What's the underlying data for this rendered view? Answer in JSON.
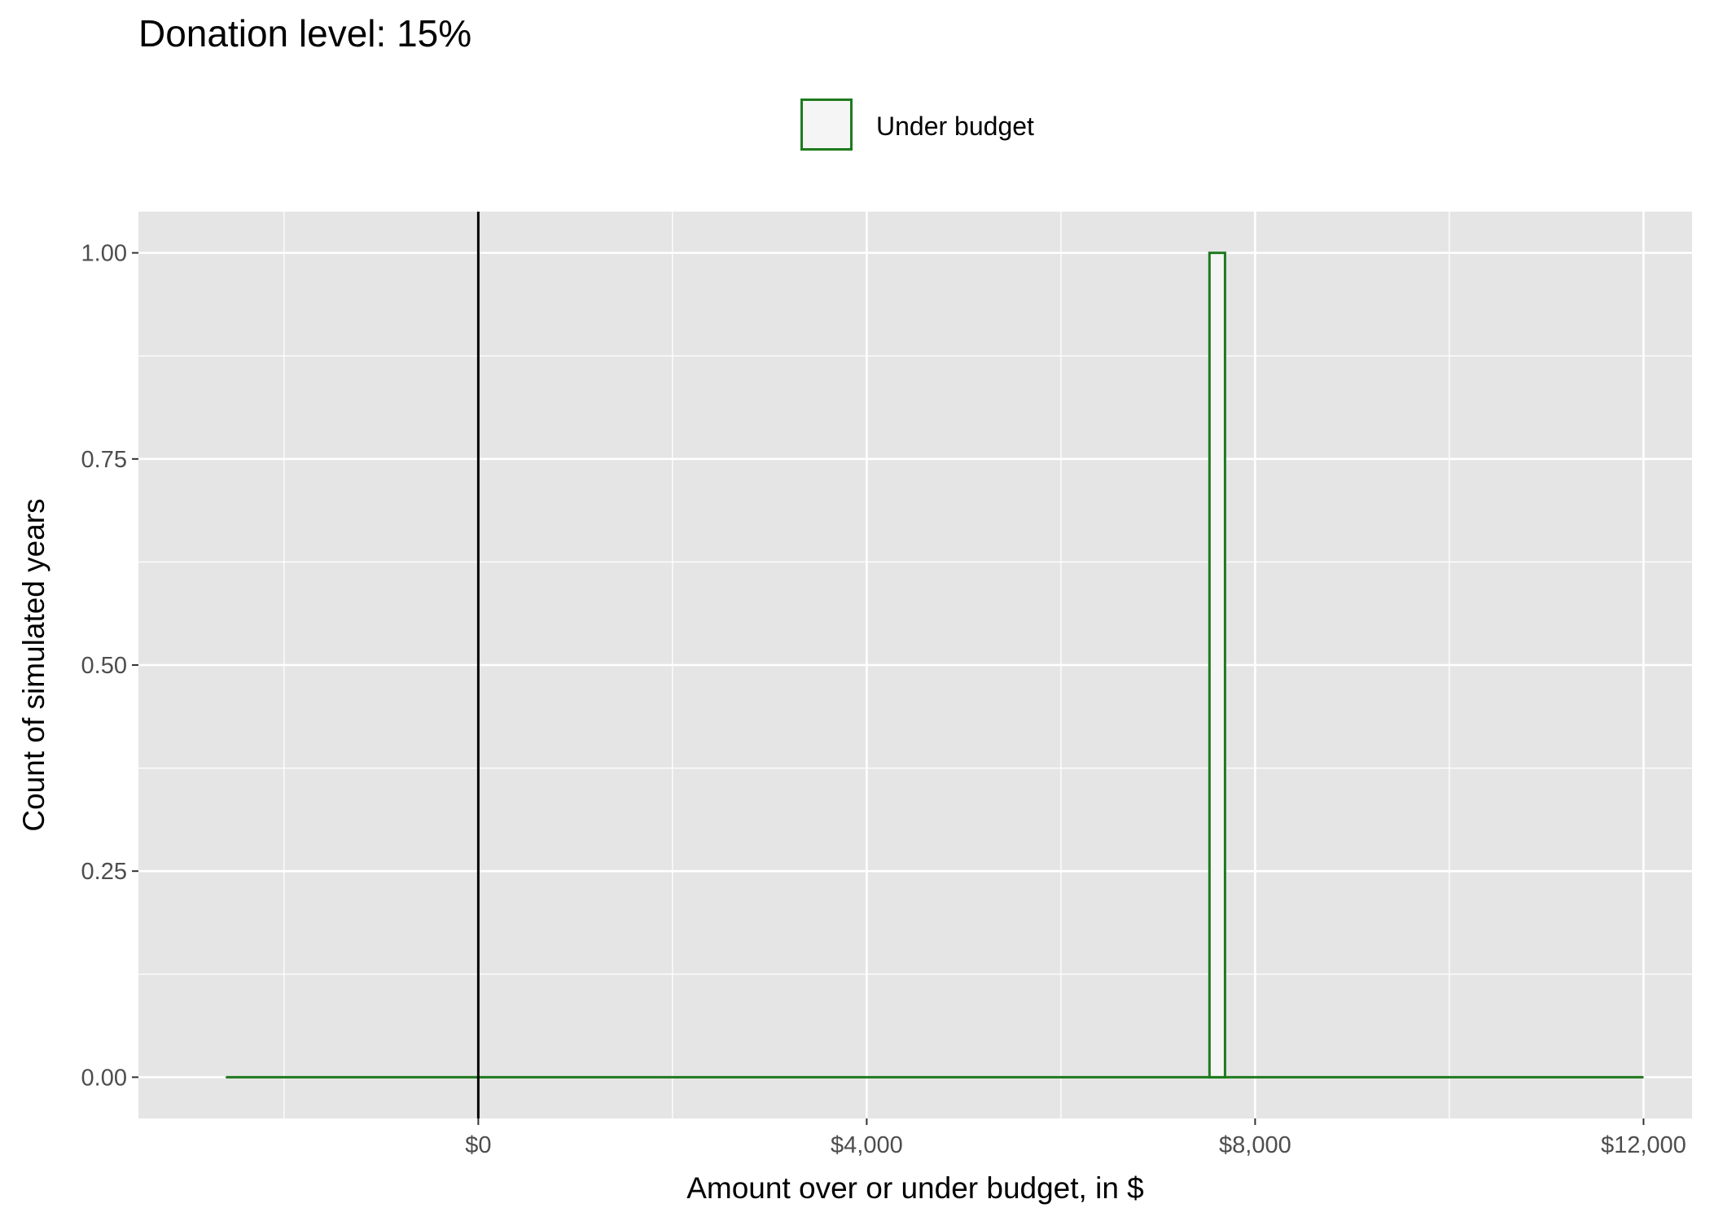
{
  "chart_data": {
    "type": "bar",
    "title": "Donation level: 15%",
    "xlabel": "Amount over or under budget, in $",
    "ylabel": "Count of simulated years",
    "xlim": [
      -3500,
      12500
    ],
    "ylim": [
      -0.05,
      1.05
    ],
    "x_ticks": [
      0,
      4000,
      8000,
      12000
    ],
    "x_tick_labels": [
      "$0",
      "$4,000",
      "$8,000",
      "$12,000"
    ],
    "y_ticks": [
      0,
      0.25,
      0.5,
      0.75,
      1.0
    ],
    "y_tick_labels": [
      "0.00",
      "0.25",
      "0.50",
      "0.75",
      "1.00"
    ],
    "reference_line_x": 0,
    "series": [
      {
        "name": "Under budget",
        "color": "#1e7a1e",
        "fill": "#f5f5f5",
        "range": [
          -2600,
          12000
        ],
        "bins": [
          {
            "x0": 7530,
            "x1": 7690,
            "count": 1
          }
        ]
      }
    ],
    "grid": true,
    "legend_position": "top"
  }
}
